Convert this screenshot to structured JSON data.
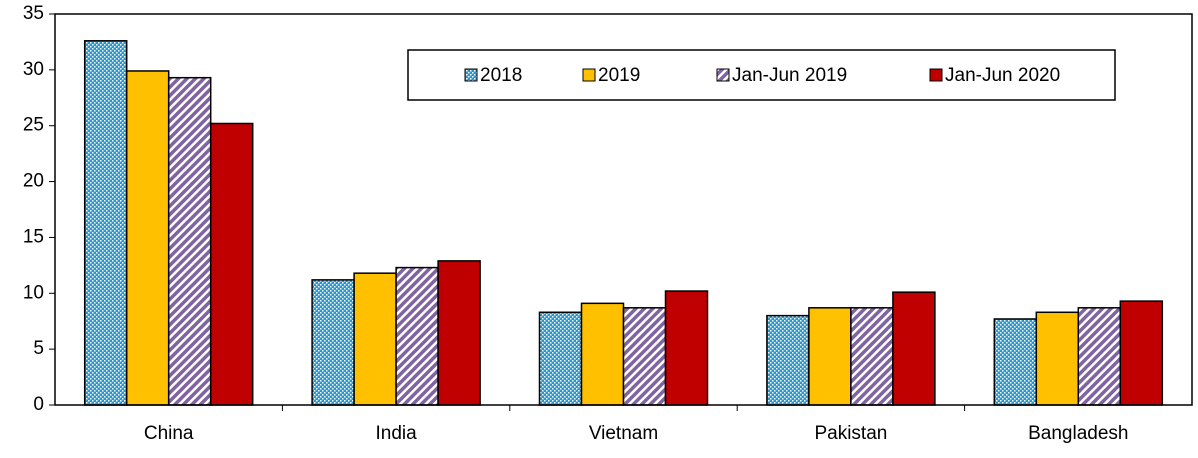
{
  "chart_data": {
    "type": "bar",
    "categories": [
      "China",
      "India",
      "Vietnam",
      "Pakistan",
      "Bangladesh"
    ],
    "series": [
      {
        "name": "2018",
        "color": "#1f9ad6",
        "pattern": "dots",
        "values": [
          32.6,
          11.2,
          8.3,
          8.0,
          7.7
        ]
      },
      {
        "name": "2019",
        "color": "#ffc000",
        "pattern": "solid",
        "values": [
          29.9,
          11.8,
          9.1,
          8.7,
          8.3
        ]
      },
      {
        "name": "Jan-Jun 2019",
        "color": "#8064a2",
        "pattern": "stripes",
        "values": [
          29.3,
          12.3,
          8.7,
          8.7,
          8.7
        ]
      },
      {
        "name": "Jan-Jun 2020",
        "color": "#c00000",
        "pattern": "solid",
        "values": [
          25.2,
          12.9,
          10.2,
          10.1,
          9.3
        ]
      }
    ],
    "ylim": [
      0,
      35
    ],
    "yticks": [
      0,
      5,
      10,
      15,
      20,
      25,
      30,
      35
    ],
    "grid": false,
    "legend": "top-right"
  }
}
